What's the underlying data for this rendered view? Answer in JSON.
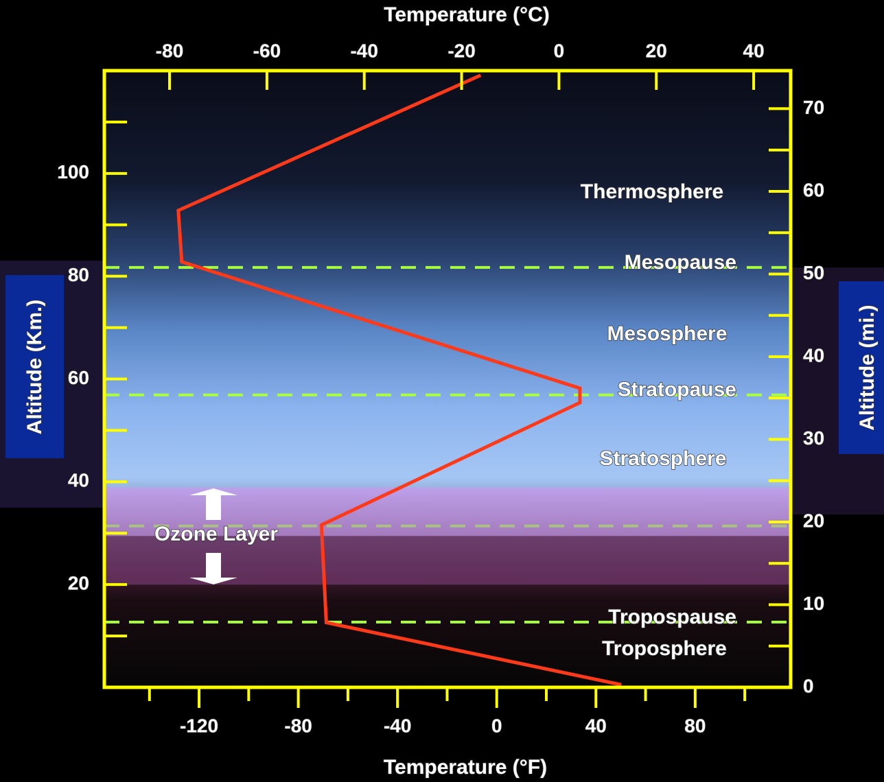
{
  "chart_data": {
    "type": "line",
    "x_label": "Temperature (°C)",
    "x2_label": "Temperature (°F)",
    "y_label": "Altitude (Km.)",
    "y2_label": "Altitude (mi.)",
    "xlim": [
      -93.4,
      47.6
    ],
    "xticks": [
      -80,
      -60,
      -40,
      -20,
      0,
      20,
      40
    ],
    "x2lim": [
      -158.2,
      118.5
    ],
    "x2ticks": [
      -120,
      -80,
      -40,
      0,
      40,
      80
    ],
    "x2minorticks": [
      -140,
      -100,
      -60,
      -20,
      20,
      60,
      100
    ],
    "ylim": [
      0,
      120
    ],
    "yticks": [
      20,
      40,
      60,
      80,
      100
    ],
    "yminorticks": [
      10,
      30,
      50,
      70,
      90,
      110
    ],
    "y2lim": [
      0,
      74.6
    ],
    "y2ticks": [
      0,
      10,
      20,
      30,
      40,
      50,
      60,
      70
    ],
    "y2minorticks": [
      5,
      15,
      25,
      35,
      45,
      55,
      65
    ],
    "axis_color": "#ffff00",
    "series": [
      {
        "color": "#ff3a1a",
        "x": [
          -16.1,
          -78.2,
          -77.5,
          4.3,
          4.3,
          -48.8,
          -47.8,
          12.8
        ],
        "values": [
          119.1,
          92.8,
          82.8,
          58.2,
          55.4,
          31.6,
          12.6,
          0.5
        ]
      }
    ],
    "boundaries": [
      {
        "label": "Mesopause",
        "value": 81.7
      },
      {
        "label": "Stratopause",
        "value": 56.9
      },
      {
        "value": 31.4
      },
      {
        "label": "Tropospause",
        "value": 12.7
      }
    ],
    "boundary_color": "#a8ff40",
    "ozone": {
      "label": "Ozone Layer",
      "range": [
        20.0,
        38.9
      ],
      "color": "#d890f0"
    },
    "annotations": [
      "Thermosphere",
      "Mesosphere",
      "Stratosphere",
      "Troposphere"
    ]
  }
}
